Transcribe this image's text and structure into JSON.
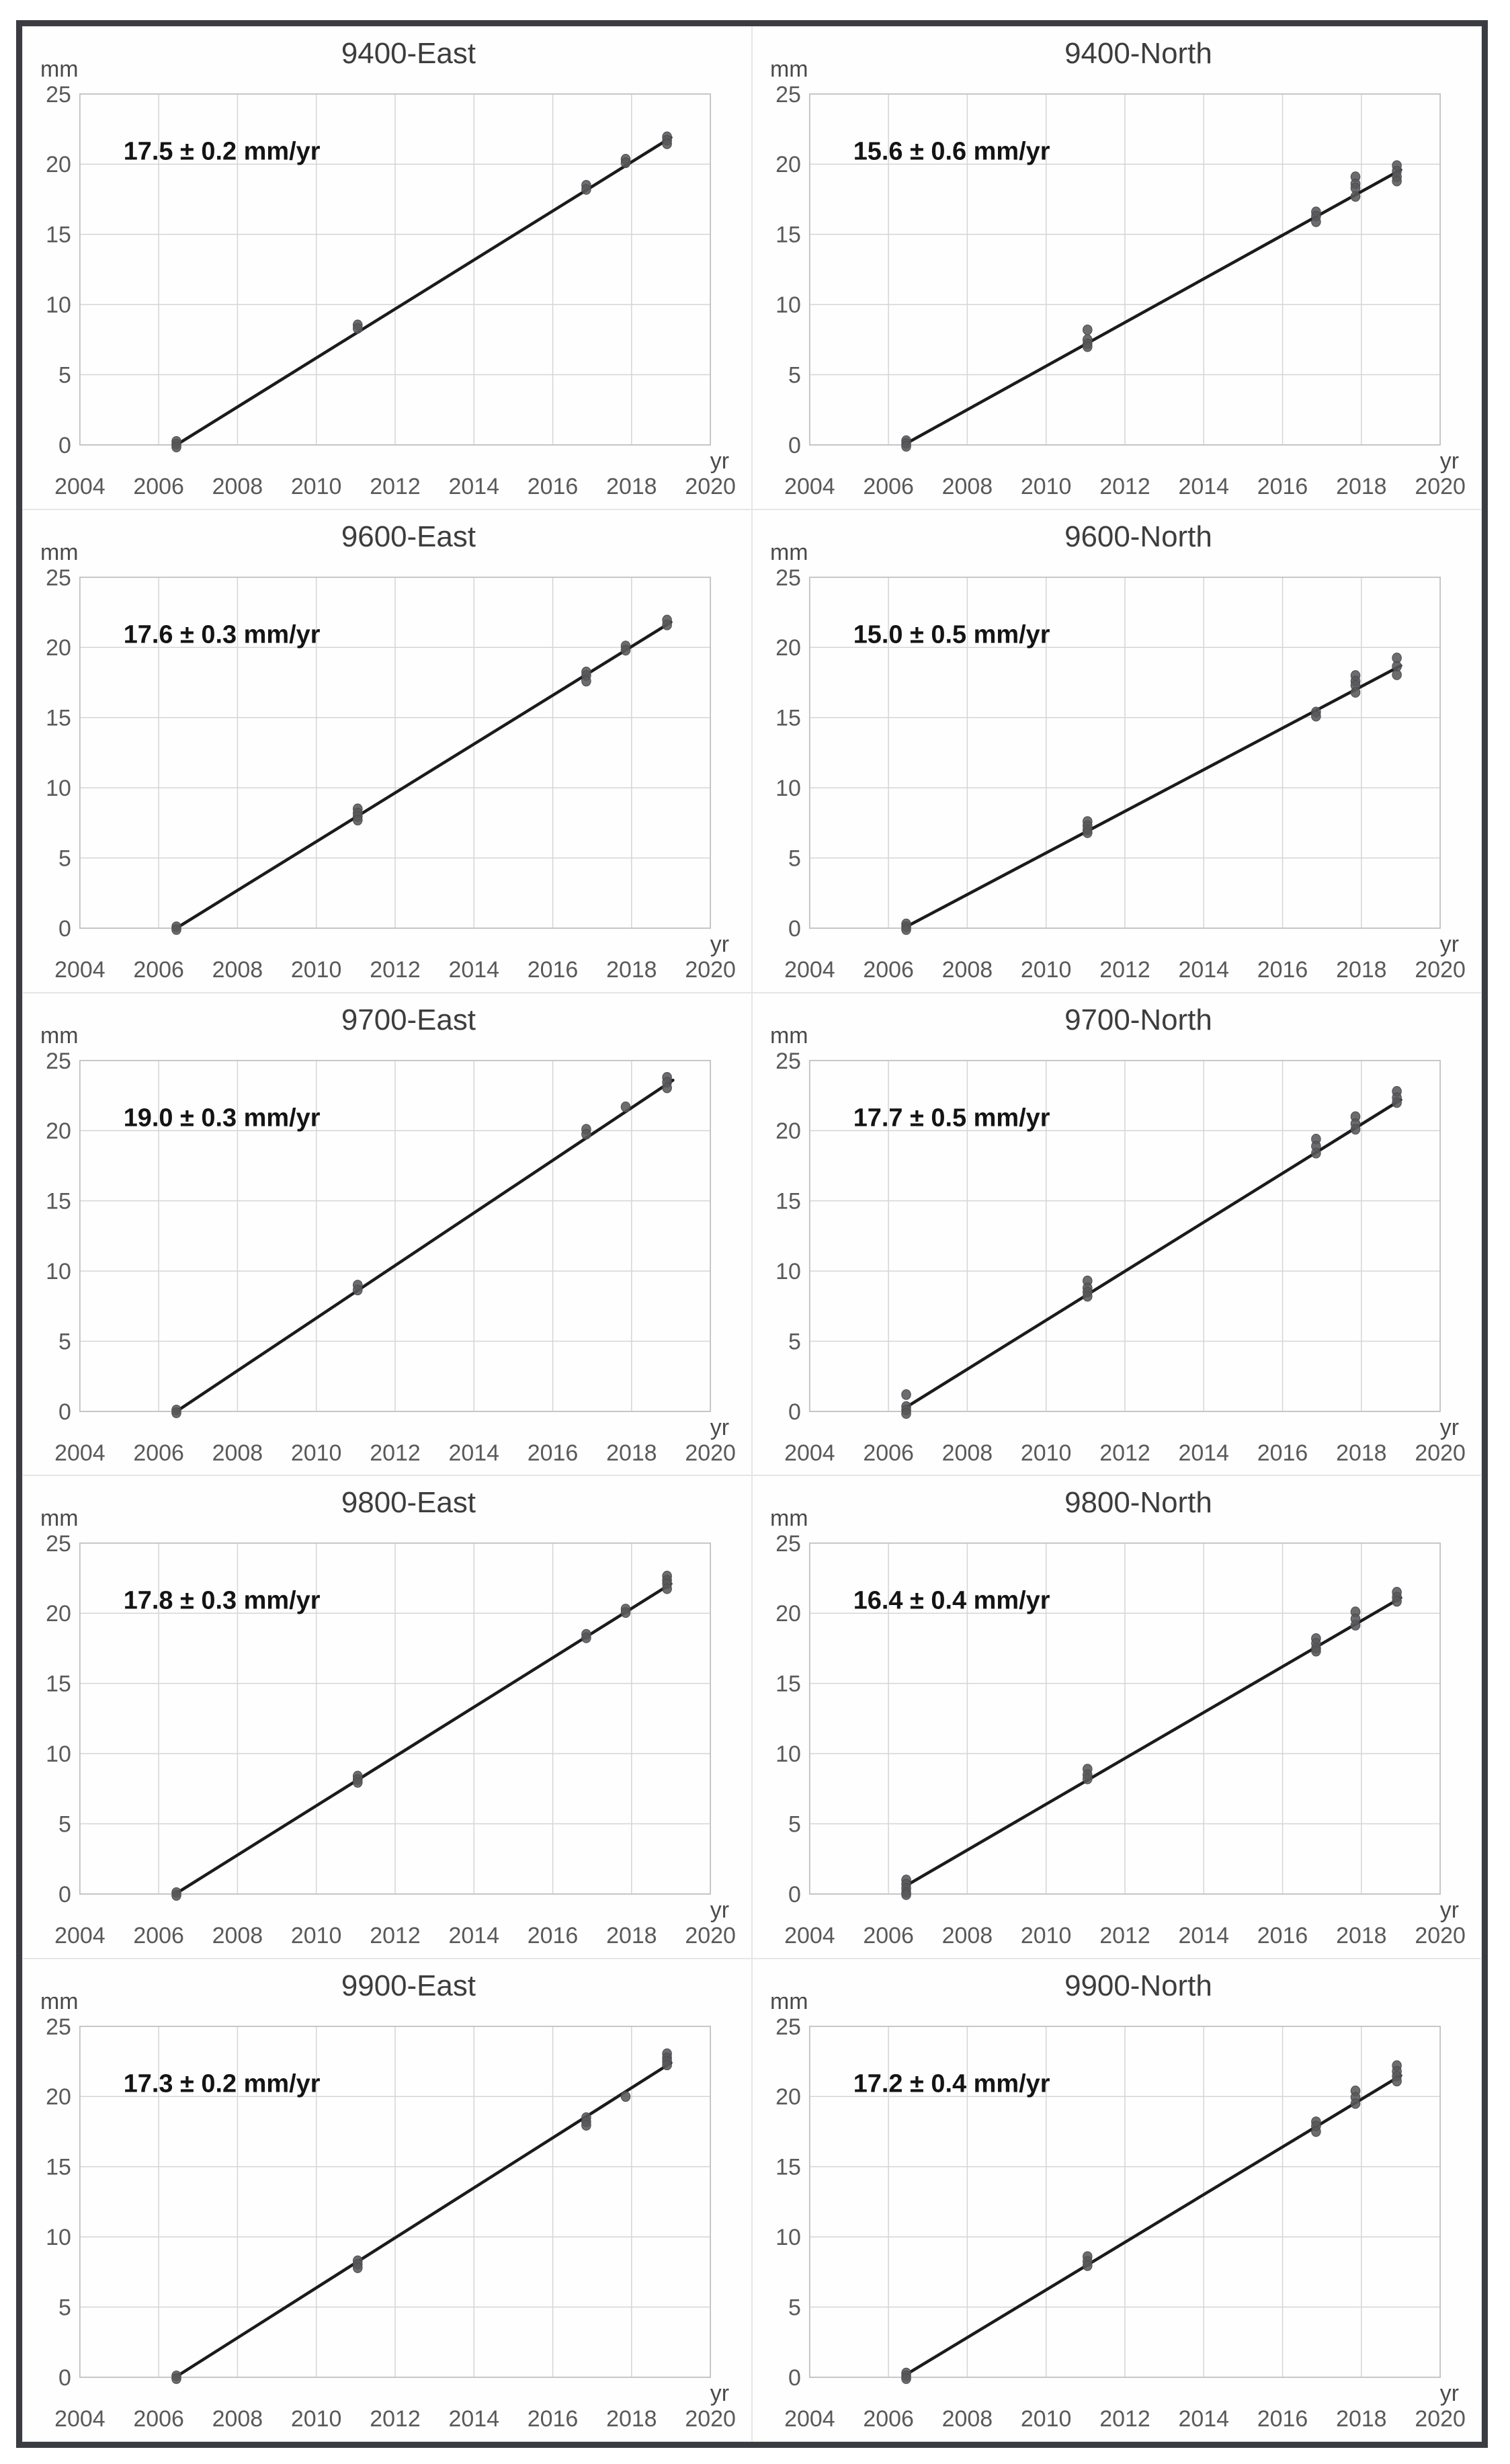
{
  "figure": {
    "y_unit_label": "mm",
    "x_unit_label": "yr",
    "frame_color": "#3b3b42",
    "grid_color": "#d5d5d5",
    "trend_color": "#1b1b1b",
    "marker_color": "#58585a",
    "tick_label_color": "#595959",
    "title_color": "#3d3d3d"
  },
  "chart_data": [
    {
      "type": "scatter",
      "title": "9400-East",
      "annotation": "17.5 ± 0.2 mm/yr",
      "rate_mm_per_yr": 17.5,
      "rate_error": 0.2,
      "xlabel": "yr",
      "ylabel": "mm",
      "xlim": [
        2004,
        2020
      ],
      "ylim": [
        0,
        25
      ],
      "x_ticks": [
        2004,
        2006,
        2008,
        2010,
        2012,
        2014,
        2016,
        2018,
        2020
      ],
      "y_ticks": [
        0,
        5,
        10,
        15,
        20,
        25
      ],
      "grid": true,
      "legend": "none",
      "points": [
        [
          2006.45,
          0.25
        ],
        [
          2006.45,
          0.05
        ],
        [
          2006.45,
          -0.15
        ],
        [
          2011.05,
          8.55
        ],
        [
          2011.05,
          8.3
        ],
        [
          2016.85,
          18.5
        ],
        [
          2016.85,
          18.2
        ],
        [
          2017.85,
          20.35
        ],
        [
          2017.85,
          20.1
        ],
        [
          2018.9,
          21.95
        ],
        [
          2018.9,
          21.7
        ],
        [
          2018.9,
          21.45
        ]
      ],
      "trend": [
        [
          2006.45,
          0.0
        ],
        [
          2019.0,
          21.9
        ]
      ]
    },
    {
      "type": "scatter",
      "title": "9400-North",
      "annotation": "15.6 ± 0.6 mm/yr",
      "rate_mm_per_yr": 15.6,
      "rate_error": 0.6,
      "xlabel": "yr",
      "ylabel": "mm",
      "xlim": [
        2004,
        2020
      ],
      "ylim": [
        0,
        25
      ],
      "x_ticks": [
        2004,
        2006,
        2008,
        2010,
        2012,
        2014,
        2016,
        2018,
        2020
      ],
      "y_ticks": [
        0,
        5,
        10,
        15,
        20,
        25
      ],
      "grid": true,
      "legend": "none",
      "points": [
        [
          2006.45,
          0.3
        ],
        [
          2006.45,
          0.1
        ],
        [
          2006.45,
          -0.1
        ],
        [
          2011.05,
          8.2
        ],
        [
          2011.05,
          7.5
        ],
        [
          2011.05,
          7.2
        ],
        [
          2011.05,
          7.0
        ],
        [
          2016.85,
          16.6
        ],
        [
          2016.85,
          16.3
        ],
        [
          2016.85,
          15.9
        ],
        [
          2017.85,
          19.1
        ],
        [
          2017.85,
          18.6
        ],
        [
          2017.85,
          18.3
        ],
        [
          2017.85,
          17.7
        ],
        [
          2018.9,
          19.9
        ],
        [
          2018.9,
          19.5
        ],
        [
          2018.9,
          19.1
        ],
        [
          2018.9,
          18.8
        ]
      ],
      "trend": [
        [
          2006.45,
          0.1
        ],
        [
          2019.0,
          19.6
        ]
      ]
    },
    {
      "type": "scatter",
      "title": "9600-East",
      "annotation": "17.6 ± 0.3 mm/yr",
      "rate_mm_per_yr": 17.6,
      "rate_error": 0.3,
      "xlabel": "yr",
      "ylabel": "mm",
      "xlim": [
        2004,
        2020
      ],
      "ylim": [
        0,
        25
      ],
      "x_ticks": [
        2004,
        2006,
        2008,
        2010,
        2012,
        2014,
        2016,
        2018,
        2020
      ],
      "y_ticks": [
        0,
        5,
        10,
        15,
        20,
        25
      ],
      "grid": true,
      "legend": "none",
      "points": [
        [
          2006.45,
          0.1
        ],
        [
          2006.45,
          -0.1
        ],
        [
          2011.05,
          8.5
        ],
        [
          2011.05,
          8.2
        ],
        [
          2011.05,
          7.95
        ],
        [
          2011.05,
          7.7
        ],
        [
          2016.85,
          18.25
        ],
        [
          2016.85,
          18.0
        ],
        [
          2016.85,
          17.6
        ],
        [
          2017.85,
          20.1
        ],
        [
          2017.85,
          19.8
        ],
        [
          2018.9,
          21.95
        ],
        [
          2018.9,
          21.6
        ]
      ],
      "trend": [
        [
          2006.45,
          0.0
        ],
        [
          2019.0,
          21.8
        ]
      ]
    },
    {
      "type": "scatter",
      "title": "9600-North",
      "annotation": "15.0 ± 0.5 mm/yr",
      "rate_mm_per_yr": 15.0,
      "rate_error": 0.5,
      "xlabel": "yr",
      "ylabel": "mm",
      "xlim": [
        2004,
        2020
      ],
      "ylim": [
        0,
        25
      ],
      "x_ticks": [
        2004,
        2006,
        2008,
        2010,
        2012,
        2014,
        2016,
        2018,
        2020
      ],
      "y_ticks": [
        0,
        5,
        10,
        15,
        20,
        25
      ],
      "grid": true,
      "legend": "none",
      "points": [
        [
          2006.45,
          0.3
        ],
        [
          2006.45,
          0.1
        ],
        [
          2006.45,
          -0.1
        ],
        [
          2011.05,
          7.6
        ],
        [
          2011.05,
          7.3
        ],
        [
          2011.05,
          7.0
        ],
        [
          2011.05,
          6.8
        ],
        [
          2016.85,
          15.4
        ],
        [
          2016.85,
          15.1
        ],
        [
          2017.85,
          18.0
        ],
        [
          2017.85,
          17.6
        ],
        [
          2017.85,
          17.3
        ],
        [
          2017.85,
          16.8
        ],
        [
          2018.9,
          19.25
        ],
        [
          2018.9,
          18.65
        ],
        [
          2018.9,
          18.05
        ]
      ],
      "trend": [
        [
          2006.45,
          0.1
        ],
        [
          2019.0,
          18.7
        ]
      ]
    },
    {
      "type": "scatter",
      "title": "9700-East",
      "annotation": "19.0 ± 0.3 mm/yr",
      "rate_mm_per_yr": 19.0,
      "rate_error": 0.3,
      "xlabel": "yr",
      "ylabel": "mm",
      "xlim": [
        2004,
        2020
      ],
      "ylim": [
        0,
        25
      ],
      "x_ticks": [
        2004,
        2006,
        2008,
        2010,
        2012,
        2014,
        2016,
        2018,
        2020
      ],
      "y_ticks": [
        0,
        5,
        10,
        15,
        20,
        25
      ],
      "grid": true,
      "legend": "none",
      "points": [
        [
          2006.45,
          0.1
        ],
        [
          2006.45,
          -0.1
        ],
        [
          2011.05,
          9.0
        ],
        [
          2011.05,
          8.65
        ],
        [
          2016.85,
          20.1
        ],
        [
          2016.85,
          19.75
        ],
        [
          2017.85,
          21.7
        ],
        [
          2018.9,
          23.8
        ],
        [
          2018.9,
          23.45
        ],
        [
          2018.9,
          23.05
        ]
      ],
      "trend": [
        [
          2006.45,
          0.0
        ],
        [
          2019.05,
          23.6
        ]
      ]
    },
    {
      "type": "scatter",
      "title": "9700-North",
      "annotation": "17.7 ± 0.5 mm/yr",
      "rate_mm_per_yr": 17.7,
      "rate_error": 0.5,
      "xlabel": "yr",
      "ylabel": "mm",
      "xlim": [
        2004,
        2020
      ],
      "ylim": [
        0,
        25
      ],
      "x_ticks": [
        2004,
        2006,
        2008,
        2010,
        2012,
        2014,
        2016,
        2018,
        2020
      ],
      "y_ticks": [
        0,
        5,
        10,
        15,
        20,
        25
      ],
      "grid": true,
      "legend": "none",
      "points": [
        [
          2006.45,
          1.2
        ],
        [
          2006.45,
          0.35
        ],
        [
          2006.45,
          0.1
        ],
        [
          2006.45,
          -0.15
        ],
        [
          2011.05,
          9.3
        ],
        [
          2011.05,
          8.8
        ],
        [
          2011.05,
          8.5
        ],
        [
          2011.05,
          8.2
        ],
        [
          2016.85,
          19.4
        ],
        [
          2016.85,
          18.9
        ],
        [
          2016.85,
          18.4
        ],
        [
          2017.85,
          21.0
        ],
        [
          2017.85,
          20.5
        ],
        [
          2017.85,
          20.1
        ],
        [
          2018.9,
          22.8
        ],
        [
          2018.9,
          22.35
        ],
        [
          2018.9,
          22.0
        ]
      ],
      "trend": [
        [
          2006.45,
          0.3
        ],
        [
          2019.0,
          22.2
        ]
      ]
    },
    {
      "type": "scatter",
      "title": "9800-East",
      "annotation": "17.8 ± 0.3 mm/yr",
      "rate_mm_per_yr": 17.8,
      "rate_error": 0.3,
      "xlabel": "yr",
      "ylabel": "mm",
      "xlim": [
        2004,
        2020
      ],
      "ylim": [
        0,
        25
      ],
      "x_ticks": [
        2004,
        2006,
        2008,
        2010,
        2012,
        2014,
        2016,
        2018,
        2020
      ],
      "y_ticks": [
        0,
        5,
        10,
        15,
        20,
        25
      ],
      "grid": true,
      "legend": "none",
      "points": [
        [
          2006.45,
          0.1
        ],
        [
          2006.45,
          -0.1
        ],
        [
          2011.05,
          8.4
        ],
        [
          2011.05,
          8.15
        ],
        [
          2011.05,
          7.95
        ],
        [
          2016.85,
          18.5
        ],
        [
          2016.85,
          18.25
        ],
        [
          2017.85,
          20.3
        ],
        [
          2017.85,
          20.05
        ],
        [
          2018.9,
          22.65
        ],
        [
          2018.9,
          22.35
        ],
        [
          2018.9,
          22.1
        ],
        [
          2018.9,
          21.75
        ]
      ],
      "trend": [
        [
          2006.45,
          0.05
        ],
        [
          2019.0,
          22.1
        ]
      ]
    },
    {
      "type": "scatter",
      "title": "9800-North",
      "annotation": "16.4 ± 0.4 mm/yr",
      "rate_mm_per_yr": 16.4,
      "rate_error": 0.4,
      "xlabel": "yr",
      "ylabel": "mm",
      "xlim": [
        2004,
        2020
      ],
      "ylim": [
        0,
        25
      ],
      "x_ticks": [
        2004,
        2006,
        2008,
        2010,
        2012,
        2014,
        2016,
        2018,
        2020
      ],
      "y_ticks": [
        0,
        5,
        10,
        15,
        20,
        25
      ],
      "grid": true,
      "legend": "none",
      "points": [
        [
          2006.45,
          1.0
        ],
        [
          2006.45,
          0.7
        ],
        [
          2006.45,
          0.4
        ],
        [
          2006.45,
          0.1
        ],
        [
          2006.45,
          -0.05
        ],
        [
          2011.05,
          8.9
        ],
        [
          2011.05,
          8.5
        ],
        [
          2011.05,
          8.2
        ],
        [
          2016.85,
          18.2
        ],
        [
          2016.85,
          17.85
        ],
        [
          2016.85,
          17.5
        ],
        [
          2016.85,
          17.3
        ],
        [
          2017.85,
          20.1
        ],
        [
          2017.85,
          19.6
        ],
        [
          2017.85,
          19.15
        ],
        [
          2018.9,
          21.5
        ],
        [
          2018.9,
          21.15
        ],
        [
          2018.9,
          20.85
        ]
      ],
      "trend": [
        [
          2006.45,
          0.6
        ],
        [
          2019.0,
          21.1
        ]
      ]
    },
    {
      "type": "scatter",
      "title": "9900-East",
      "annotation": "17.3 ± 0.2 mm/yr",
      "rate_mm_per_yr": 17.3,
      "rate_error": 0.2,
      "xlabel": "yr",
      "ylabel": "mm",
      "xlim": [
        2004,
        2020
      ],
      "ylim": [
        0,
        25
      ],
      "x_ticks": [
        2004,
        2006,
        2008,
        2010,
        2012,
        2014,
        2016,
        2018,
        2020
      ],
      "y_ticks": [
        0,
        5,
        10,
        15,
        20,
        25
      ],
      "grid": true,
      "legend": "none",
      "points": [
        [
          2006.45,
          0.1
        ],
        [
          2006.45,
          -0.1
        ],
        [
          2011.05,
          8.3
        ],
        [
          2011.05,
          8.05
        ],
        [
          2011.05,
          7.8
        ],
        [
          2016.85,
          18.5
        ],
        [
          2016.85,
          18.2
        ],
        [
          2016.85,
          17.95
        ],
        [
          2017.85,
          20.0
        ],
        [
          2018.9,
          23.05
        ],
        [
          2018.9,
          22.75
        ],
        [
          2018.9,
          22.5
        ],
        [
          2018.9,
          22.25
        ]
      ],
      "trend": [
        [
          2006.45,
          0.05
        ],
        [
          2019.0,
          22.4
        ]
      ]
    },
    {
      "type": "scatter",
      "title": "9900-North",
      "annotation": "17.2 ± 0.4 mm/yr",
      "rate_mm_per_yr": 17.2,
      "rate_error": 0.4,
      "xlabel": "yr",
      "ylabel": "mm",
      "xlim": [
        2004,
        2020
      ],
      "ylim": [
        0,
        25
      ],
      "x_ticks": [
        2004,
        2006,
        2008,
        2010,
        2012,
        2014,
        2016,
        2018,
        2020
      ],
      "y_ticks": [
        0,
        5,
        10,
        15,
        20,
        25
      ],
      "grid": true,
      "legend": "none",
      "points": [
        [
          2006.45,
          0.3
        ],
        [
          2006.45,
          0.1
        ],
        [
          2006.45,
          -0.1
        ],
        [
          2011.05,
          8.6
        ],
        [
          2011.05,
          8.25
        ],
        [
          2011.05,
          7.95
        ],
        [
          2016.85,
          18.2
        ],
        [
          2016.85,
          17.9
        ],
        [
          2016.85,
          17.5
        ],
        [
          2017.85,
          20.4
        ],
        [
          2017.85,
          19.95
        ],
        [
          2017.85,
          19.5
        ],
        [
          2018.9,
          22.2
        ],
        [
          2018.9,
          21.8
        ],
        [
          2018.9,
          21.45
        ],
        [
          2018.9,
          21.1
        ]
      ],
      "trend": [
        [
          2006.45,
          0.2
        ],
        [
          2019.0,
          21.5
        ]
      ]
    }
  ]
}
